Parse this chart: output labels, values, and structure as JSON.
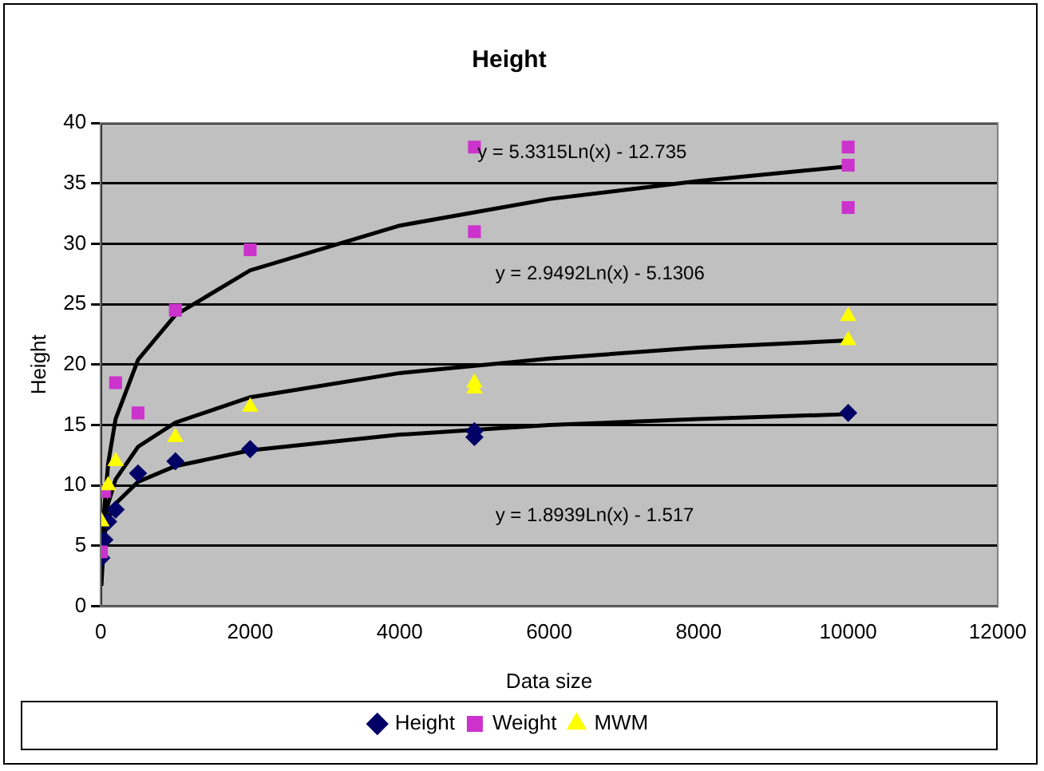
{
  "chart_data": {
    "type": "scatter",
    "title": "Height",
    "xlabel": "Data size",
    "ylabel": "Height",
    "xlim": [
      0,
      12000
    ],
    "xticks": [
      0,
      2000,
      4000,
      6000,
      8000,
      10000,
      12000
    ],
    "ylim": [
      0,
      40
    ],
    "yticks": [
      0,
      5,
      10,
      15,
      20,
      25,
      30,
      35,
      40
    ],
    "grid": "y",
    "legend": "bottom",
    "series": [
      {
        "name": "Height",
        "color": "#000066",
        "marker": "diamond",
        "x": [
          10,
          50,
          100,
          200,
          500,
          1000,
          2000,
          5000,
          5000,
          10000
        ],
        "values": [
          4,
          5.5,
          7,
          8,
          11,
          12,
          13,
          14.5,
          14,
          16
        ]
      },
      {
        "name": "Weight",
        "color": "#cc33cc",
        "marker": "square",
        "x": [
          10,
          50,
          200,
          500,
          1000,
          2000,
          5000,
          5000,
          10000,
          10000,
          10000
        ],
        "values": [
          4.5,
          9.5,
          18.5,
          16,
          24.5,
          29.5,
          38,
          31,
          38,
          36.5,
          33
        ]
      },
      {
        "name": "MWM",
        "color": "#ffff00",
        "marker": "triangle",
        "x": [
          10,
          100,
          200,
          1000,
          2000,
          5000,
          5000,
          10000,
          10000
        ],
        "values": [
          7,
          10,
          12,
          14,
          16.5,
          18.5,
          18,
          24,
          22
        ]
      },
      {
        "type": "line",
        "color": "#000000",
        "marker": "none",
        "x": [
          20,
          50,
          100,
          200,
          500,
          1000,
          2000,
          4000,
          6000,
          8000,
          10000
        ],
        "values": [
          3.2,
          8.1,
          11.8,
          15.5,
          20.4,
          24.1,
          27.8,
          31.5,
          33.7,
          35.2,
          36.4
        ]
      },
      {
        "type": "line",
        "color": "#000000",
        "marker": "none",
        "x": [
          10,
          50,
          100,
          200,
          500,
          1000,
          2000,
          4000,
          6000,
          8000,
          10000
        ],
        "values": [
          1.7,
          6.4,
          8.5,
          10.5,
          13.2,
          15.2,
          17.3,
          19.3,
          20.5,
          21.4,
          22
        ]
      },
      {
        "type": "line",
        "color": "#000000",
        "marker": "none",
        "x": [
          10,
          50,
          100,
          200,
          500,
          1000,
          2000,
          4000,
          6000,
          8000,
          10000
        ],
        "values": [
          2.8,
          5.9,
          7.2,
          8.5,
          10.3,
          11.6,
          12.9,
          14.2,
          15,
          15.5,
          15.9
        ]
      }
    ],
    "annotations": [
      "y = 5.3315Ln(x) - 12.735",
      "y = 2.9492Ln(x) - 5.1306",
      "y = 1.8939Ln(x) - 1.517"
    ]
  }
}
